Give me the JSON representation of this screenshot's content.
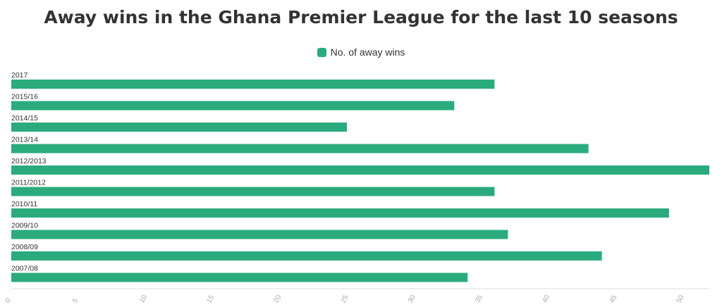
{
  "chart_data": {
    "type": "bar",
    "orientation": "horizontal",
    "title": "Away wins in the Ghana Premier League for the last 10 seasons",
    "xlabel": "",
    "ylabel": "",
    "categories": [
      "2017",
      "2015/16",
      "2014/15",
      "2013/14",
      "2012/2013",
      "2011/2012",
      "2010/11",
      "2009/10",
      "2008/09",
      "2007/08"
    ],
    "series": [
      {
        "name": "No. of away wins",
        "values": [
          36,
          33,
          25,
          43,
          52,
          36,
          49,
          37,
          44,
          34
        ]
      }
    ],
    "xlim": [
      0,
      52
    ],
    "xticks": [
      "0",
      "5",
      "10",
      "15",
      "20",
      "25",
      "30",
      "35",
      "40",
      "45",
      "50"
    ],
    "legend_position": "top-center",
    "grid": false,
    "colors": {
      "bar": "#2bab7d",
      "text": "#333333",
      "tick": "#aaaaaa",
      "axis": "#dddddd"
    }
  }
}
